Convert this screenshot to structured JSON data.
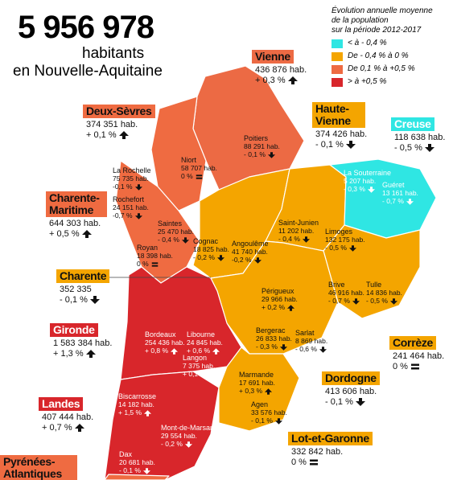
{
  "header": {
    "total": "5 956 978",
    "line1": "habitants",
    "line2": "en Nouvelle-Aquitaine"
  },
  "legend": {
    "title": [
      "Évolution annuelle moyenne",
      "de la population",
      "sur la période 2012-2017"
    ],
    "items": [
      {
        "label": "< à - 0,4 %",
        "color": "#2fe6e3"
      },
      {
        "label": "De - 0,4 % à 0 %",
        "color": "#f4a500"
      },
      {
        "label": "De 0,1 % à +0,5 %",
        "color": "#ee6a42"
      },
      {
        "label": "> à +0,5 %",
        "color": "#d8262b"
      }
    ]
  },
  "departments": [
    {
      "name": "Vienne",
      "population": "436 876 hab.",
      "change": "+ 0,3 %"
    },
    {
      "name": "Deux-Sèvres",
      "population": "374 351 hab.",
      "change": "+ 0,1 %"
    },
    {
      "name": "Haute-Vienne",
      "population": "374 426 hab.",
      "change": "- 0,1 %"
    },
    {
      "name": "Creuse",
      "population": "118 638 hab.",
      "change": "- 0,5 %"
    },
    {
      "name": "Charente-Maritime",
      "population": "644 303 hab.",
      "change": "+ 0,5 %"
    },
    {
      "name": "Charente",
      "population": "352 335",
      "change": "- 0,1 %"
    },
    {
      "name": "Gironde",
      "population": "1 583 384 hab.",
      "change": "+ 1,3 %"
    },
    {
      "name": "Corrèze",
      "population": "241 464 hab.",
      "change": "0 %"
    },
    {
      "name": "Dordogne",
      "population": "413 606 hab.",
      "change": "- 0,1 %"
    },
    {
      "name": "Landes",
      "population": "407 444 hab.",
      "change": "+ 0,7 %"
    },
    {
      "name": "Lot-et-Garonne",
      "population": "332 842 hab.",
      "change": "0 %"
    },
    {
      "name": "Pyrénées-Atlantiques"
    }
  ],
  "cities": [
    {
      "name": "La Rochelle",
      "population": "75 735 hab.",
      "change": "-0,1 %"
    },
    {
      "name": "Rochefort",
      "population": "24 151 hab.",
      "change": "-0,7 %"
    },
    {
      "name": "Niort",
      "population": "58 707 hab.",
      "change": "0 %"
    },
    {
      "name": "Poitiers",
      "population": "88 291 hab.",
      "change": "- 0,1 %"
    },
    {
      "name": "Saintes",
      "population": "25 470 hab.",
      "change": "- 0,4 %"
    },
    {
      "name": "Cognac",
      "population": "18 825 hab.",
      "change": "- 0,2 %"
    },
    {
      "name": "Royan",
      "population": "18 398 hab.",
      "change": "0 %"
    },
    {
      "name": "Angoulême",
      "population": "41 740 hab.",
      "change": "-0,2 %"
    },
    {
      "name": "Saint-Junien",
      "population": "11 202 hab.",
      "change": "- 0,4 %"
    },
    {
      "name": "Limoges",
      "population": "132 175 hab.",
      "change": "- 0,5 %"
    },
    {
      "name": "La Souterraine",
      "population": "5 207 hab.",
      "change": "- 0,3 %"
    },
    {
      "name": "Guéret",
      "population": "13 161 hab.",
      "change": "- 0,7 %"
    },
    {
      "name": "Brive",
      "population": "46 916 hab.",
      "change": "- 0,7 %"
    },
    {
      "name": "Tulle",
      "population": "14 836 hab.",
      "change": "- 0,5 %"
    },
    {
      "name": "Périgueux",
      "population": "29 966 hab.",
      "change": "+ 0,2 %"
    },
    {
      "name": "Bergerac",
      "population": "26 833 hab.",
      "change": "- 0,3 %"
    },
    {
      "name": "Sarlat",
      "population": "8 869 hab.",
      "change": "- 0,6 %"
    },
    {
      "name": "Libourne",
      "population": "24 845 hab.",
      "change": "+ 0,6 %"
    },
    {
      "name": "Bordeaux",
      "population": "254 436 hab.",
      "change": "+ 0,8 %"
    },
    {
      "name": "Langon",
      "population": "7 375 hab.",
      "change": "+ 0,1 %"
    },
    {
      "name": "Marmande",
      "population": "17 691 hab.",
      "change": "+ 0,3 %"
    },
    {
      "name": "Agen",
      "population": "33 576 hab.",
      "change": "- 0,1 %"
    },
    {
      "name": "Biscarrosse",
      "population": "14 182 hab.",
      "change": "+ 1,5 %"
    },
    {
      "name": "Mont-de-Marsan",
      "population": "29 554 hab.",
      "change": "- 0,2 %"
    },
    {
      "name": "Dax",
      "population": "20 681 hab.",
      "change": "- 0,1 %"
    }
  ]
}
